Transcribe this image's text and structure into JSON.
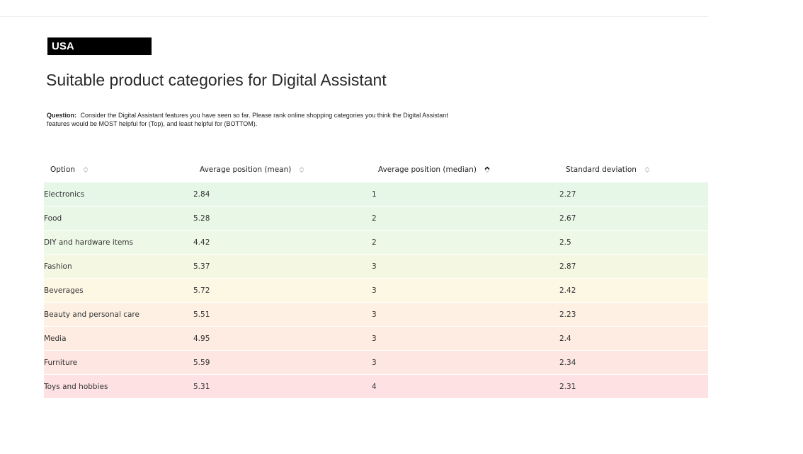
{
  "header": {
    "country": "USA",
    "title": "Suitable product categories for Digital Assistant",
    "question_label": "Question:",
    "question_text": "Consider the Digital Assistant features you have seen so far. Please rank online shopping categories you think the Digital Assistant features would be MOST helpful for (Top), and least helpful for (BOTTOM)."
  },
  "table": {
    "columns": [
      {
        "label": "Option",
        "sort": "none",
        "icon": "sort-both-icon"
      },
      {
        "label": "Average position (mean)",
        "sort": "none",
        "icon": "sort-both-icon"
      },
      {
        "label": "Average position (median)",
        "sort": "ascending",
        "icon": "sort-ascending-icon"
      },
      {
        "label": "Standard deviation",
        "sort": "none",
        "icon": "sort-both-icon"
      }
    ],
    "rows": [
      {
        "option": "Electronics",
        "mean": "2.84",
        "median": "1",
        "sd": "2.27",
        "color": "#e6f7e8"
      },
      {
        "option": "Food",
        "mean": "5.28",
        "median": "2",
        "sd": "2.67",
        "color": "#e9f7e7"
      },
      {
        "option": "DIY and hardware items",
        "mean": "4.42",
        "median": "2",
        "sd": "2.5",
        "color": "#eef8e6"
      },
      {
        "option": "Fashion",
        "mean": "5.37",
        "median": "3",
        "sd": "2.87",
        "color": "#f4f8e3"
      },
      {
        "option": "Beverages",
        "mean": "5.72",
        "median": "3",
        "sd": "2.42",
        "color": "#fdf8e4"
      },
      {
        "option": "Beauty and personal care",
        "mean": "5.51",
        "median": "3",
        "sd": "2.23",
        "color": "#fef1e3"
      },
      {
        "option": "Media",
        "mean": "4.95",
        "median": "3",
        "sd": "2.4",
        "color": "#feece3"
      },
      {
        "option": "Furniture",
        "mean": "5.59",
        "median": "3",
        "sd": "2.34",
        "color": "#fee6e3"
      },
      {
        "option": "Toys and hobbies",
        "mean": "5.31",
        "median": "4",
        "sd": "2.31",
        "color": "#fde1e3"
      }
    ]
  }
}
